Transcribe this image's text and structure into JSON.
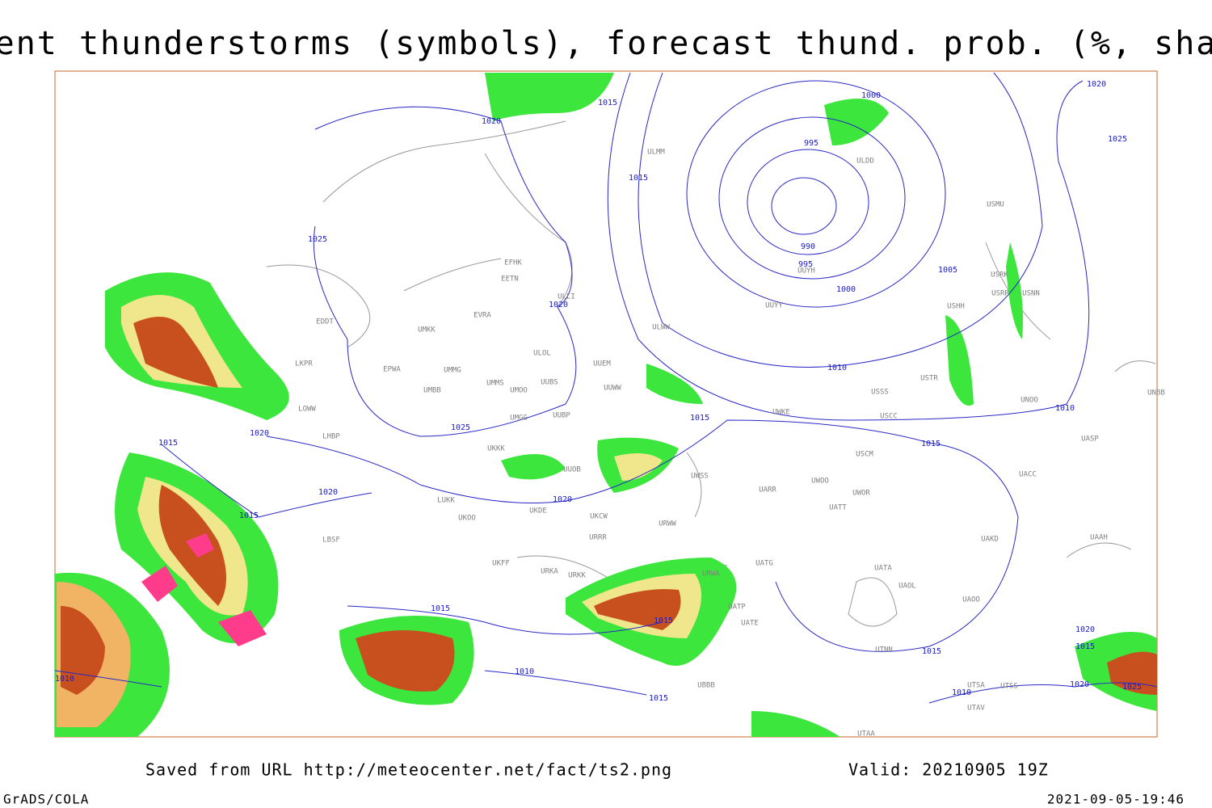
{
  "title": "Current thunderstorms (symbols), forecast thund. prob. (%, shaded)",
  "isobar_labels": [
    "1020",
    "1015",
    "1000",
    "1020",
    "1025",
    "995",
    "1015",
    "1025",
    "990",
    "995",
    "1005",
    "1000",
    "1020",
    "1010",
    "1010",
    "1015",
    "1025",
    "1020",
    "1015",
    "1015",
    "1020",
    "1020",
    "1015",
    "1015",
    "1015",
    "1020",
    "1015",
    "1015",
    "1010",
    "1010",
    "1020",
    "1025",
    "1015",
    "1010"
  ],
  "station_labels": [
    "ULMM",
    "ULDD",
    "EFHK",
    "EETN",
    "EVRA",
    "UMKK",
    "ULOL",
    "EPWA",
    "UMMG",
    "UMBB",
    "UMMS",
    "UMOO",
    "UUBS",
    "UUEM",
    "UUWW",
    "UMGG",
    "UUBP",
    "UKKK",
    "UUOB",
    "LUKK",
    "UKOO",
    "UKFF",
    "URKA",
    "URKK",
    "UKDE",
    "UKCW",
    "URRR",
    "URWW",
    "URWA",
    "UATG",
    "UWSS",
    "UWKE",
    "USCM",
    "UWOO",
    "UWOR",
    "UATT",
    "UARR",
    "UAKD",
    "UATA",
    "UAOL",
    "UAOO",
    "UTNN",
    "UTSA",
    "UTAV",
    "UTAA",
    "UBBB",
    "LKPR",
    "EDDT",
    "LOWW",
    "LHBP",
    "LBSF",
    "USSS",
    "USCC",
    "USTR",
    "UUYY",
    "ULWW",
    "USHH",
    "USRK",
    "USNN",
    "USRR",
    "USMU",
    "UNOO",
    "UACC",
    "UASP",
    "UNBB",
    "UUYH",
    "UAAH",
    "UATE",
    "UATP",
    "UTSS",
    "ULLI"
  ],
  "footer": {
    "source": "Saved from URL http://meteocenter.net/fact/ts2.png",
    "valid": "Valid: 20210905 19Z",
    "software": "GrADS/COLA",
    "timestamp": "2021-09-05-19:46"
  }
}
